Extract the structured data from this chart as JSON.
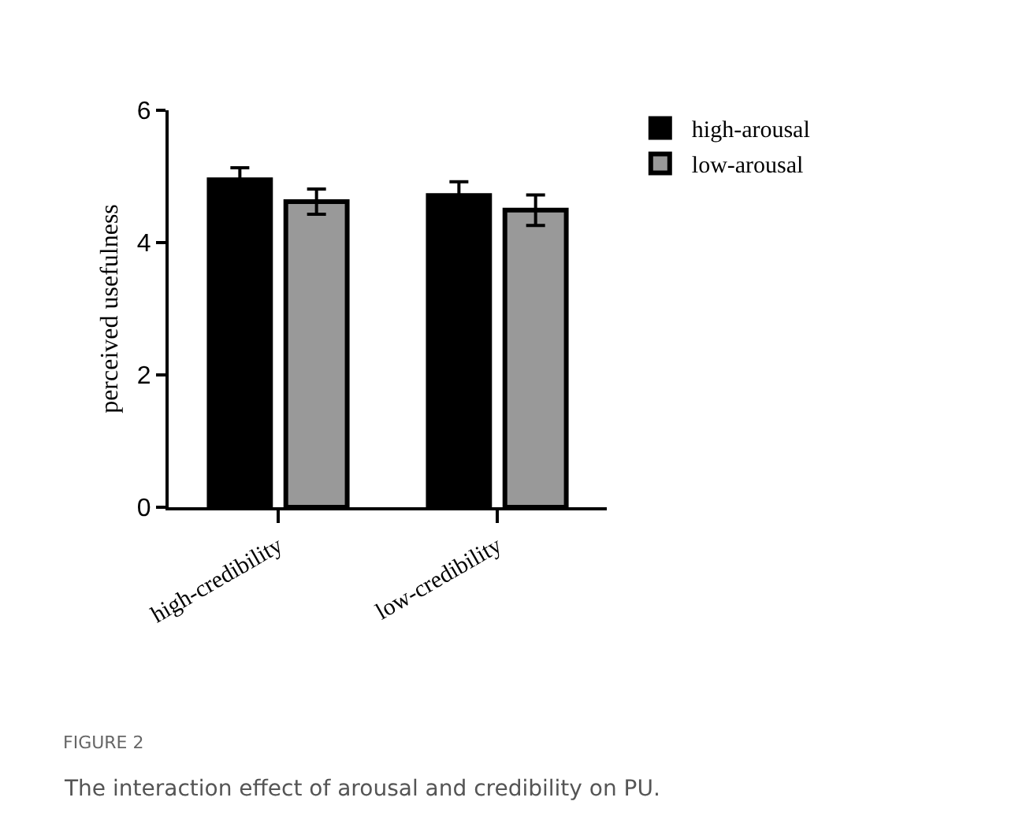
{
  "chart_data": {
    "type": "bar",
    "ylabel": "perceived usefulness",
    "categories": [
      "high-credibility",
      "low-credibility"
    ],
    "series": [
      {
        "name": "high-arousal",
        "color": "#000000",
        "values": [
          4.95,
          4.71
        ],
        "errors": [
          0.18,
          0.21
        ]
      },
      {
        "name": "low-arousal",
        "color": "#999999",
        "values": [
          4.62,
          4.49
        ],
        "errors": [
          0.19,
          0.23
        ]
      }
    ],
    "ylim": [
      0,
      6
    ],
    "yticks": [
      0,
      2,
      4,
      6
    ],
    "grid": false,
    "legend": "top right",
    "annotations": [
      "FIGURE 2",
      "The interaction effect of arousal and credibility on PU."
    ]
  }
}
